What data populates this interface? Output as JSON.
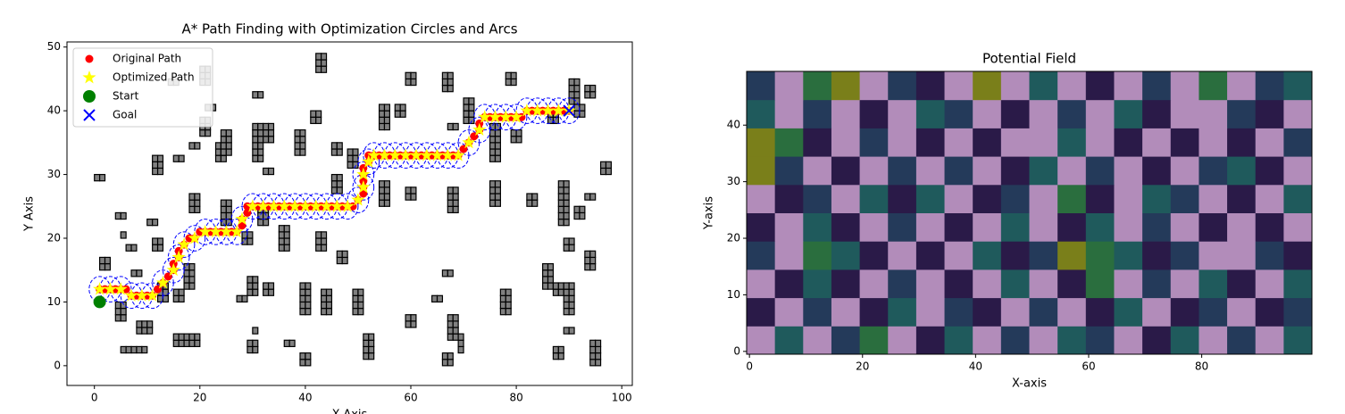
{
  "chart_data": [
    {
      "type": "scatter",
      "title": "A* Path Finding with Optimization Circles and Arcs",
      "x_label": "X-Axis",
      "y_label": "Y Axis",
      "xlim": [
        -5.2,
        102
      ],
      "ylim": [
        -3.1,
        50.8
      ],
      "xticks": [
        0,
        20,
        40,
        60,
        80,
        100
      ],
      "yticks": [
        0,
        10,
        20,
        30,
        40,
        50
      ],
      "legend": "upper left",
      "circle_radius": 2,
      "circle_color": "#0000ff",
      "obstacle_color": "#808080",
      "series": [
        {
          "name": "Original Path",
          "color": "#ff0000",
          "marker": "circle",
          "x": [
            1,
            2,
            3,
            4,
            5,
            6,
            7,
            8,
            9,
            10,
            11,
            12,
            13,
            14,
            15,
            15,
            16,
            16,
            17,
            18,
            19,
            20,
            21,
            22,
            23,
            24,
            25,
            26,
            27,
            28,
            28,
            29,
            29,
            30,
            31,
            32,
            33,
            34,
            35,
            36,
            37,
            38,
            39,
            40,
            41,
            42,
            43,
            44,
            45,
            46,
            47,
            48,
            49,
            50,
            51,
            51,
            51,
            51,
            51,
            52,
            52,
            53,
            54,
            55,
            56,
            57,
            58,
            59,
            60,
            61,
            62,
            63,
            64,
            65,
            66,
            67,
            68,
            69,
            70,
            71,
            72,
            73,
            73,
            74,
            75,
            76,
            77,
            78,
            79,
            80,
            81,
            82,
            83,
            84,
            85,
            86,
            87,
            88,
            89,
            90
          ],
          "values": [
            12,
            12,
            12,
            12,
            12,
            12,
            11,
            11,
            11,
            11,
            11,
            12,
            13,
            14,
            15,
            16,
            17,
            18,
            19,
            20,
            20,
            21,
            21,
            21,
            21,
            21,
            21,
            21,
            21,
            22,
            23,
            24,
            25,
            25,
            25,
            25,
            25,
            25,
            25,
            25,
            25,
            25,
            25,
            25,
            25,
            25,
            25,
            25,
            25,
            25,
            25,
            25,
            25,
            26,
            27,
            28,
            29,
            30,
            31,
            32,
            33,
            33,
            33,
            33,
            33,
            33,
            33,
            33,
            33,
            33,
            33,
            33,
            33,
            33,
            33,
            33,
            33,
            33,
            34,
            35,
            36,
            37,
            38,
            39,
            39,
            39,
            39,
            39,
            39,
            39,
            39,
            40,
            40,
            40,
            40,
            40,
            40,
            40,
            40,
            40
          ]
        },
        {
          "name": "Optimized Path",
          "color": "#ffff00",
          "marker": "star",
          "circles": true,
          "x": [
            1,
            3,
            5,
            7,
            9,
            11,
            13,
            15,
            16,
            17,
            19,
            21,
            23,
            25,
            27,
            28,
            30,
            32,
            34,
            36,
            38,
            40,
            42,
            44,
            46,
            48,
            50,
            51,
            51,
            52,
            53,
            55,
            57,
            59,
            61,
            63,
            65,
            67,
            69,
            71,
            73,
            74,
            76,
            78,
            80,
            82,
            84,
            86,
            88,
            90
          ],
          "values": [
            12,
            12,
            12,
            11,
            11,
            11,
            13,
            15,
            17,
            19,
            20,
            21,
            21,
            21,
            21,
            23,
            25,
            25,
            25,
            25,
            25,
            25,
            25,
            25,
            25,
            25,
            26,
            28,
            30,
            32,
            33,
            33,
            33,
            33,
            33,
            33,
            33,
            33,
            33,
            35,
            37,
            39,
            39,
            39,
            39,
            40,
            40,
            40,
            40,
            40
          ]
        },
        {
          "name": "Start",
          "color": "#008000",
          "marker": "big",
          "x": [
            1
          ],
          "values": [
            10
          ]
        },
        {
          "name": "Goal",
          "color": "#0000ff",
          "marker": "cross",
          "x": [
            90
          ],
          "values": [
            40
          ]
        }
      ],
      "obstacles": [
        {
          "x": 0,
          "y": 29,
          "width": 2,
          "height": 1
        },
        {
          "x": 1,
          "y": 15,
          "width": 2,
          "height": 2
        },
        {
          "x": 4,
          "y": 23,
          "width": 2,
          "height": 1
        },
        {
          "x": 4,
          "y": 7,
          "width": 2,
          "height": 3
        },
        {
          "x": 5,
          "y": 2,
          "width": 5,
          "height": 1
        },
        {
          "x": 8,
          "y": 5,
          "width": 3,
          "height": 2
        },
        {
          "x": 5,
          "y": 20,
          "width": 1,
          "height": 1
        },
        {
          "x": 6,
          "y": 18,
          "width": 2,
          "height": 1
        },
        {
          "x": 7,
          "y": 14,
          "width": 2,
          "height": 1
        },
        {
          "x": 10,
          "y": 22,
          "width": 2,
          "height": 1
        },
        {
          "x": 11,
          "y": 30,
          "width": 2,
          "height": 3
        },
        {
          "x": 11,
          "y": 18,
          "width": 2,
          "height": 2
        },
        {
          "x": 12,
          "y": 10,
          "width": 2,
          "height": 3
        },
        {
          "x": 14,
          "y": 44,
          "width": 2,
          "height": 1
        },
        {
          "x": 15,
          "y": 32,
          "width": 2,
          "height": 1
        },
        {
          "x": 15,
          "y": 3,
          "width": 5,
          "height": 2
        },
        {
          "x": 15,
          "y": 10,
          "width": 2,
          "height": 2
        },
        {
          "x": 17,
          "y": 12,
          "width": 2,
          "height": 4
        },
        {
          "x": 18,
          "y": 24,
          "width": 2,
          "height": 3
        },
        {
          "x": 18,
          "y": 34,
          "width": 2,
          "height": 1
        },
        {
          "x": 20,
          "y": 44,
          "width": 2,
          "height": 3
        },
        {
          "x": 20,
          "y": 36,
          "width": 2,
          "height": 3
        },
        {
          "x": 21,
          "y": 40,
          "width": 2,
          "height": 1
        },
        {
          "x": 23,
          "y": 32,
          "width": 2,
          "height": 3
        },
        {
          "x": 24,
          "y": 33,
          "width": 2,
          "height": 4
        },
        {
          "x": 24,
          "y": 22,
          "width": 2,
          "height": 4
        },
        {
          "x": 27,
          "y": 10,
          "width": 2,
          "height": 1
        },
        {
          "x": 28,
          "y": 19,
          "width": 2,
          "height": 2
        },
        {
          "x": 29,
          "y": 11,
          "width": 2,
          "height": 3
        },
        {
          "x": 29,
          "y": 2,
          "width": 2,
          "height": 2
        },
        {
          "x": 30,
          "y": 5,
          "width": 1,
          "height": 1
        },
        {
          "x": 30,
          "y": 32,
          "width": 2,
          "height": 6
        },
        {
          "x": 30,
          "y": 42,
          "width": 2,
          "height": 1
        },
        {
          "x": 31,
          "y": 22,
          "width": 2,
          "height": 3
        },
        {
          "x": 32,
          "y": 35,
          "width": 2,
          "height": 3
        },
        {
          "x": 32,
          "y": 30,
          "width": 2,
          "height": 1
        },
        {
          "x": 32,
          "y": 11,
          "width": 2,
          "height": 2
        },
        {
          "x": 35,
          "y": 18,
          "width": 2,
          "height": 4
        },
        {
          "x": 36,
          "y": 3,
          "width": 2,
          "height": 1
        },
        {
          "x": 38,
          "y": 33,
          "width": 2,
          "height": 4
        },
        {
          "x": 39,
          "y": 8,
          "width": 2,
          "height": 5
        },
        {
          "x": 39,
          "y": 0,
          "width": 2,
          "height": 2
        },
        {
          "x": 41,
          "y": 38,
          "width": 2,
          "height": 2
        },
        {
          "x": 42,
          "y": 18,
          "width": 2,
          "height": 3
        },
        {
          "x": 42,
          "y": 46,
          "width": 2,
          "height": 3
        },
        {
          "x": 43,
          "y": 8,
          "width": 2,
          "height": 4
        },
        {
          "x": 45,
          "y": 33,
          "width": 2,
          "height": 2
        },
        {
          "x": 45,
          "y": 27,
          "width": 2,
          "height": 3
        },
        {
          "x": 46,
          "y": 16,
          "width": 2,
          "height": 2
        },
        {
          "x": 48,
          "y": 31,
          "width": 2,
          "height": 3
        },
        {
          "x": 49,
          "y": 8,
          "width": 2,
          "height": 4
        },
        {
          "x": 51,
          "y": 1,
          "width": 2,
          "height": 4
        },
        {
          "x": 54,
          "y": 25,
          "width": 2,
          "height": 4
        },
        {
          "x": 54,
          "y": 37,
          "width": 2,
          "height": 4
        },
        {
          "x": 57,
          "y": 39,
          "width": 2,
          "height": 2
        },
        {
          "x": 59,
          "y": 6,
          "width": 2,
          "height": 2
        },
        {
          "x": 59,
          "y": 26,
          "width": 2,
          "height": 2
        },
        {
          "x": 59,
          "y": 44,
          "width": 2,
          "height": 2
        },
        {
          "x": 64,
          "y": 10,
          "width": 2,
          "height": 1
        },
        {
          "x": 66,
          "y": 43,
          "width": 2,
          "height": 3
        },
        {
          "x": 66,
          "y": 0,
          "width": 2,
          "height": 2
        },
        {
          "x": 66,
          "y": 14,
          "width": 2,
          "height": 1
        },
        {
          "x": 67,
          "y": 4,
          "width": 2,
          "height": 4
        },
        {
          "x": 67,
          "y": 24,
          "width": 2,
          "height": 4
        },
        {
          "x": 67,
          "y": 37,
          "width": 2,
          "height": 1
        },
        {
          "x": 69,
          "y": 2,
          "width": 1,
          "height": 3
        },
        {
          "x": 70,
          "y": 38,
          "width": 2,
          "height": 4
        },
        {
          "x": 75,
          "y": 32,
          "width": 2,
          "height": 6
        },
        {
          "x": 75,
          "y": 25,
          "width": 2,
          "height": 4
        },
        {
          "x": 77,
          "y": 8,
          "width": 2,
          "height": 4
        },
        {
          "x": 79,
          "y": 35,
          "width": 2,
          "height": 2
        },
        {
          "x": 78,
          "y": 44,
          "width": 2,
          "height": 2
        },
        {
          "x": 82,
          "y": 25,
          "width": 2,
          "height": 2
        },
        {
          "x": 85,
          "y": 12,
          "width": 2,
          "height": 4
        },
        {
          "x": 86,
          "y": 38,
          "width": 2,
          "height": 2
        },
        {
          "x": 87,
          "y": 11,
          "width": 2,
          "height": 2
        },
        {
          "x": 87,
          "y": 1,
          "width": 2,
          "height": 2
        },
        {
          "x": 88,
          "y": 22,
          "width": 2,
          "height": 7
        },
        {
          "x": 89,
          "y": 5,
          "width": 2,
          "height": 1
        },
        {
          "x": 89,
          "y": 18,
          "width": 2,
          "height": 2
        },
        {
          "x": 89,
          "y": 8,
          "width": 2,
          "height": 5
        },
        {
          "x": 90,
          "y": 41,
          "width": 2,
          "height": 4
        },
        {
          "x": 91,
          "y": 39,
          "width": 2,
          "height": 2
        },
        {
          "x": 91,
          "y": 23,
          "width": 2,
          "height": 2
        },
        {
          "x": 93,
          "y": 26,
          "width": 2,
          "height": 1
        },
        {
          "x": 93,
          "y": 42,
          "width": 2,
          "height": 2
        },
        {
          "x": 93,
          "y": 15,
          "width": 2,
          "height": 3
        },
        {
          "x": 94,
          "y": 0,
          "width": 2,
          "height": 4
        },
        {
          "x": 96,
          "y": 30,
          "width": 2,
          "height": 2
        }
      ]
    },
    {
      "type": "heatmap",
      "title": "Potential Field",
      "x_label": "X-axis",
      "y_label": "Y-axis",
      "xlim": [
        -0.5,
        99.5
      ],
      "ylim": [
        -0.5,
        49.5
      ],
      "xticks": [
        0,
        20,
        40,
        60,
        80
      ],
      "yticks": [
        0,
        10,
        20,
        30,
        40
      ],
      "cell_size": 5,
      "colors": [
        "#2a1a48",
        "#243a5a",
        "#1f5a5c",
        "#2a6e3e",
        "#7a7f1a",
        "#b28cba"
      ],
      "z": [
        [
          5,
          2,
          5,
          1,
          3,
          5,
          0,
          2,
          5,
          1,
          5,
          2,
          1,
          5,
          0,
          2,
          5,
          1,
          5,
          2
        ],
        [
          0,
          5,
          1,
          5,
          0,
          2,
          5,
          1,
          0,
          5,
          1,
          5,
          0,
          2,
          5,
          0,
          1,
          5,
          0,
          1
        ],
        [
          5,
          0,
          2,
          0,
          5,
          1,
          5,
          0,
          5,
          2,
          5,
          0,
          3,
          5,
          1,
          5,
          2,
          0,
          5,
          2
        ],
        [
          1,
          5,
          3,
          2,
          0,
          5,
          0,
          5,
          2,
          0,
          1,
          4,
          3,
          2,
          0,
          1,
          5,
          5,
          1,
          0
        ],
        [
          0,
          5,
          2,
          0,
          5,
          1,
          5,
          0,
          5,
          2,
          5,
          0,
          2,
          5,
          1,
          5,
          0,
          5,
          0,
          5
        ],
        [
          5,
          0,
          1,
          5,
          2,
          0,
          2,
          5,
          0,
          1,
          5,
          3,
          0,
          5,
          2,
          1,
          5,
          0,
          5,
          2
        ],
        [
          4,
          1,
          5,
          0,
          5,
          1,
          5,
          1,
          5,
          0,
          2,
          5,
          1,
          5,
          0,
          5,
          1,
          2,
          0,
          5
        ],
        [
          4,
          3,
          0,
          5,
          1,
          5,
          0,
          5,
          0,
          5,
          5,
          2,
          5,
          0,
          5,
          0,
          5,
          0,
          5,
          1
        ],
        [
          2,
          5,
          1,
          5,
          0,
          5,
          2,
          1,
          5,
          0,
          5,
          1,
          5,
          2,
          0,
          5,
          5,
          1,
          0,
          5
        ],
        [
          1,
          5,
          3,
          4,
          5,
          1,
          0,
          5,
          4,
          5,
          2,
          5,
          0,
          5,
          1,
          5,
          3,
          5,
          1,
          2
        ]
      ]
    }
  ]
}
